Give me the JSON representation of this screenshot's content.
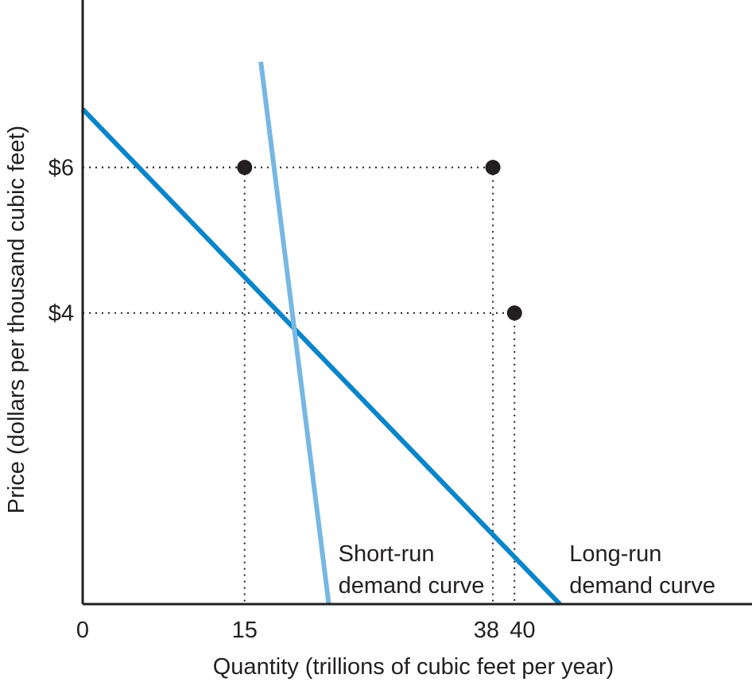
{
  "chart_data": {
    "type": "line",
    "xlabel": "Quantity (trillions of cubic feet per year)",
    "ylabel": "Price (dollars per thousand cubic feet)",
    "x_ticks": [
      {
        "value": 0,
        "label": "0"
      },
      {
        "value": 15,
        "label": "15"
      },
      {
        "value": 38,
        "label": "38"
      },
      {
        "value": 40,
        "label": "40"
      }
    ],
    "y_ticks": [
      {
        "value": 6,
        "label": "$6"
      },
      {
        "value": 4,
        "label": "$4"
      }
    ],
    "xlim": [
      0,
      62
    ],
    "ylim": [
      0,
      8.3
    ],
    "grid": false,
    "legend": "none",
    "series": [
      {
        "name": "Long-run demand curve",
        "label_lines": [
          "Long-run",
          "demand curve"
        ],
        "color": "#0a85c9",
        "points": [
          [
            0,
            6.8
          ],
          [
            44.2,
            0
          ]
        ]
      },
      {
        "name": "Short-run demand curve",
        "label_lines": [
          "Short-run",
          "demand curve"
        ],
        "color": "#77b7e3",
        "points": [
          [
            16.5,
            7.45
          ],
          [
            22.8,
            0
          ]
        ]
      }
    ],
    "highlight_points": [
      {
        "x": 15,
        "y": 6
      },
      {
        "x": 38,
        "y": 6
      },
      {
        "x": 40,
        "y": 4
      }
    ]
  }
}
